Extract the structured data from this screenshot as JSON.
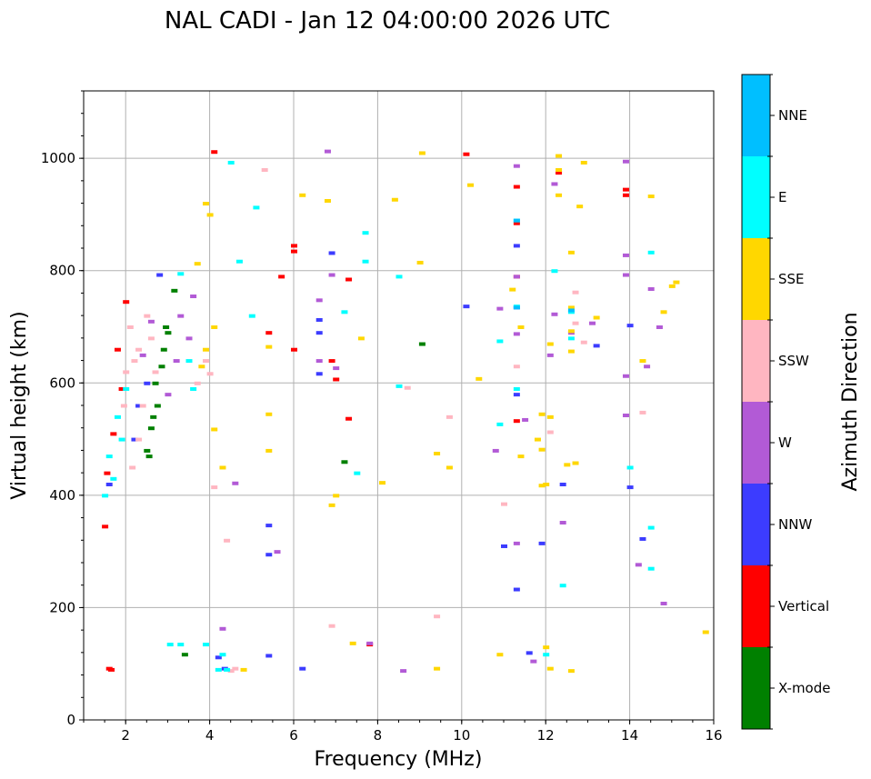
{
  "chart_data": {
    "type": "scatter",
    "title": "NAL CADI - Jan 12 04:00:00 2026 UTC",
    "xlabel": "Frequency (MHz)",
    "ylabel": "Virtual height (km)",
    "xlim": [
      1,
      16
    ],
    "ylim": [
      0,
      1120
    ],
    "xticks": [
      2,
      4,
      6,
      8,
      10,
      12,
      14,
      16
    ],
    "yticks": [
      0,
      200,
      400,
      600,
      800,
      1000
    ],
    "grid": true,
    "colorbar": {
      "title": "Azimuth Direction",
      "categories": [
        {
          "name": "X-mode",
          "color": "#008000"
        },
        {
          "name": "Vertical",
          "color": "#ff0000"
        },
        {
          "name": "NNW",
          "color": "#3c3cff"
        },
        {
          "name": "W",
          "color": "#b25ad6"
        },
        {
          "name": "SSW",
          "color": "#ffb6c1"
        },
        {
          "name": "SSE",
          "color": "#ffd700"
        },
        {
          "name": "E",
          "color": "#00ffff"
        },
        {
          "name": "NNE",
          "color": "#00bfff"
        }
      ]
    },
    "series": [
      {
        "name": "X-mode",
        "points": [
          [
            3.4,
            117
          ],
          [
            2.9,
            660
          ],
          [
            2.85,
            630
          ],
          [
            3.0,
            690
          ],
          [
            2.75,
            560
          ],
          [
            2.6,
            520
          ],
          [
            2.55,
            470
          ],
          [
            7.2,
            460
          ],
          [
            9.05,
            670
          ],
          [
            3.15,
            765
          ],
          [
            2.95,
            700
          ],
          [
            2.7,
            600
          ],
          [
            2.5,
            480
          ],
          [
            2.65,
            540
          ]
        ]
      },
      {
        "name": "Vertical",
        "points": [
          [
            1.6,
            92
          ],
          [
            1.65,
            90
          ],
          [
            4.1,
            1012
          ],
          [
            10.1,
            1008
          ],
          [
            12.3,
            975
          ],
          [
            13.9,
            945
          ],
          [
            13.9,
            935
          ],
          [
            11.3,
            950
          ],
          [
            11.3,
            885
          ],
          [
            11.3,
            790
          ],
          [
            6.0,
            845
          ],
          [
            6.0,
            835
          ],
          [
            6.0,
            660
          ],
          [
            5.4,
            690
          ],
          [
            5.7,
            790
          ],
          [
            6.9,
            640
          ],
          [
            7.3,
            785
          ],
          [
            11.3,
            533
          ],
          [
            7.8,
            135
          ],
          [
            2.0,
            745
          ],
          [
            1.8,
            660
          ],
          [
            1.9,
            590
          ],
          [
            1.7,
            510
          ],
          [
            1.55,
            440
          ],
          [
            1.5,
            345
          ],
          [
            7.0,
            607
          ],
          [
            7.3,
            537
          ]
        ]
      },
      {
        "name": "NNW",
        "points": [
          [
            5.4,
            115
          ],
          [
            5.4,
            347
          ],
          [
            5.4,
            295
          ],
          [
            4.2,
            112
          ],
          [
            4.35,
            92
          ],
          [
            6.2,
            92
          ],
          [
            6.6,
            690
          ],
          [
            6.6,
            713
          ],
          [
            6.6,
            617
          ],
          [
            6.9,
            832
          ],
          [
            11.3,
            845
          ],
          [
            11.3,
            735
          ],
          [
            11.3,
            580
          ],
          [
            11.3,
            233
          ],
          [
            12.4,
            420
          ],
          [
            13.2,
            667
          ],
          [
            14.0,
            703
          ],
          [
            14.0,
            415
          ],
          [
            14.3,
            323
          ],
          [
            10.1,
            737
          ],
          [
            11.0,
            310
          ],
          [
            11.6,
            120
          ],
          [
            11.9,
            315
          ],
          [
            2.3,
            560
          ],
          [
            2.5,
            600
          ],
          [
            2.2,
            500
          ],
          [
            2.8,
            793
          ],
          [
            1.6,
            420
          ]
        ]
      },
      {
        "name": "W",
        "points": [
          [
            4.6,
            422
          ],
          [
            4.3,
            163
          ],
          [
            5.6,
            300
          ],
          [
            6.6,
            748
          ],
          [
            6.6,
            640
          ],
          [
            6.9,
            793
          ],
          [
            6.8,
            1013
          ],
          [
            7.0,
            627
          ],
          [
            7.8,
            137
          ],
          [
            8.6,
            88
          ],
          [
            10.9,
            733
          ],
          [
            11.3,
            790
          ],
          [
            11.3,
            688
          ],
          [
            11.5,
            535
          ],
          [
            11.3,
            315
          ],
          [
            10.8,
            480
          ],
          [
            12.2,
            955
          ],
          [
            12.2,
            723
          ],
          [
            12.4,
            352
          ],
          [
            12.1,
            650
          ],
          [
            12.6,
            690
          ],
          [
            13.1,
            707
          ],
          [
            13.9,
            995
          ],
          [
            13.9,
            828
          ],
          [
            13.9,
            793
          ],
          [
            13.9,
            613
          ],
          [
            13.9,
            543
          ],
          [
            14.2,
            277
          ],
          [
            14.5,
            768
          ],
          [
            14.7,
            700
          ],
          [
            14.8,
            208
          ],
          [
            14.4,
            630
          ],
          [
            11.3,
            987
          ],
          [
            11.7,
            105
          ],
          [
            3.6,
            755
          ],
          [
            3.3,
            720
          ],
          [
            3.5,
            680
          ],
          [
            2.4,
            650
          ],
          [
            2.6,
            710
          ],
          [
            3.0,
            580
          ],
          [
            3.2,
            640
          ]
        ]
      },
      {
        "name": "SSW",
        "points": [
          [
            4.5,
            88
          ],
          [
            4.6,
            92
          ],
          [
            4.4,
            320
          ],
          [
            4.1,
            415
          ],
          [
            5.3,
            980
          ],
          [
            6.9,
            168
          ],
          [
            8.7,
            592
          ],
          [
            9.4,
            185
          ],
          [
            9.7,
            540
          ],
          [
            11.0,
            385
          ],
          [
            11.3,
            630
          ],
          [
            12.1,
            513
          ],
          [
            12.7,
            762
          ],
          [
            12.7,
            707
          ],
          [
            12.9,
            673
          ],
          [
            14.3,
            548
          ],
          [
            2.1,
            700
          ],
          [
            2.3,
            660
          ],
          [
            2.5,
            720
          ],
          [
            2.2,
            640
          ],
          [
            2.4,
            560
          ],
          [
            2.0,
            620
          ],
          [
            2.6,
            680
          ],
          [
            1.95,
            560
          ],
          [
            2.3,
            500
          ],
          [
            2.15,
            450
          ],
          [
            2.7,
            620
          ],
          [
            3.7,
            600
          ],
          [
            3.9,
            640
          ],
          [
            4.0,
            617
          ]
        ]
      },
      {
        "name": "SSE",
        "points": [
          [
            4.8,
            90
          ],
          [
            5.4,
            545
          ],
          [
            5.4,
            480
          ],
          [
            5.4,
            665
          ],
          [
            6.2,
            935
          ],
          [
            6.8,
            925
          ],
          [
            6.9,
            383
          ],
          [
            7.0,
            400
          ],
          [
            7.4,
            137
          ],
          [
            7.6,
            680
          ],
          [
            8.1,
            423
          ],
          [
            8.4,
            927
          ],
          [
            9.0,
            815
          ],
          [
            9.05,
            1010
          ],
          [
            9.4,
            475
          ],
          [
            9.4,
            92
          ],
          [
            9.7,
            450
          ],
          [
            10.2,
            953
          ],
          [
            10.4,
            608
          ],
          [
            10.9,
            117
          ],
          [
            11.2,
            767
          ],
          [
            11.4,
            700
          ],
          [
            11.4,
            470
          ],
          [
            11.8,
            500
          ],
          [
            11.9,
            418
          ],
          [
            11.9,
            545
          ],
          [
            11.9,
            482
          ],
          [
            12.0,
            420
          ],
          [
            12.1,
            540
          ],
          [
            12.1,
            670
          ],
          [
            12.3,
            1005
          ],
          [
            12.3,
            980
          ],
          [
            12.3,
            935
          ],
          [
            12.5,
            455
          ],
          [
            12.6,
            833
          ],
          [
            12.6,
            735
          ],
          [
            12.6,
            693
          ],
          [
            12.6,
            657
          ],
          [
            12.7,
            458
          ],
          [
            12.8,
            915
          ],
          [
            12.9,
            993
          ],
          [
            13.2,
            717
          ],
          [
            14.5,
            933
          ],
          [
            14.3,
            640
          ],
          [
            14.8,
            727
          ],
          [
            15.1,
            780
          ],
          [
            15.0,
            773
          ],
          [
            15.8,
            157
          ],
          [
            12.6,
            88
          ],
          [
            12.1,
            92
          ],
          [
            12.0,
            130
          ],
          [
            3.7,
            813
          ],
          [
            3.9,
            920
          ],
          [
            4.0,
            900
          ],
          [
            4.1,
            518
          ],
          [
            4.1,
            700
          ],
          [
            3.9,
            660
          ],
          [
            3.8,
            630
          ],
          [
            4.3,
            450
          ]
        ]
      },
      {
        "name": "E",
        "points": [
          [
            3.05,
            135
          ],
          [
            3.3,
            135
          ],
          [
            3.9,
            135
          ],
          [
            4.3,
            117
          ],
          [
            4.5,
            993
          ],
          [
            4.7,
            817
          ],
          [
            5.1,
            913
          ],
          [
            5.0,
            720
          ],
          [
            7.2,
            727
          ],
          [
            7.5,
            440
          ],
          [
            7.7,
            868
          ],
          [
            7.7,
            817
          ],
          [
            8.5,
            790
          ],
          [
            8.5,
            595
          ],
          [
            10.9,
            675
          ],
          [
            10.9,
            527
          ],
          [
            11.3,
            890
          ],
          [
            11.3,
            737
          ],
          [
            11.3,
            590
          ],
          [
            12.0,
            117
          ],
          [
            12.2,
            800
          ],
          [
            12.4,
            240
          ],
          [
            12.6,
            727
          ],
          [
            12.6,
            680
          ],
          [
            14.0,
            450
          ],
          [
            14.5,
            833
          ],
          [
            14.5,
            343
          ],
          [
            14.5,
            270
          ],
          [
            4.4,
            90
          ],
          [
            4.2,
            90
          ],
          [
            2.0,
            590
          ],
          [
            1.8,
            540
          ],
          [
            1.6,
            470
          ],
          [
            1.5,
            400
          ],
          [
            1.7,
            430
          ],
          [
            1.9,
            500
          ],
          [
            3.3,
            795
          ],
          [
            3.5,
            640
          ],
          [
            3.6,
            590
          ]
        ]
      },
      {
        "name": "NNE",
        "points": [
          [
            11.3,
            890
          ],
          [
            11.3,
            735
          ],
          [
            12.6,
            730
          ]
        ]
      }
    ]
  }
}
